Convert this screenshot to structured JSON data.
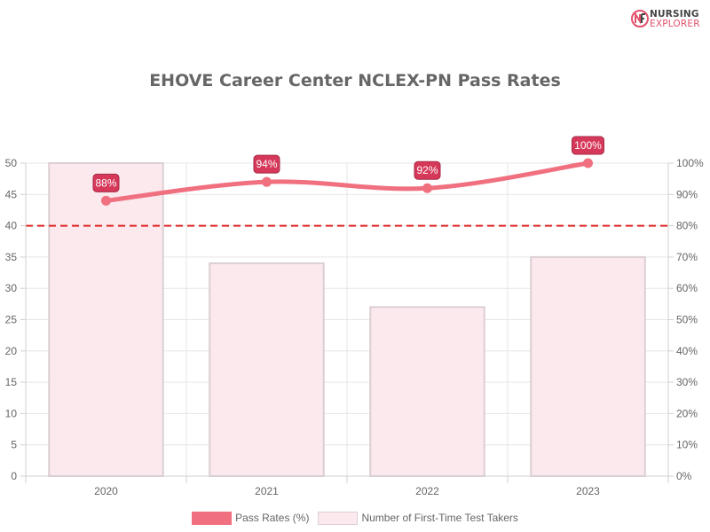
{
  "logo": {
    "line1": "NURSING",
    "line2": "EXPLORER",
    "icon": "nursing-explorer-logo-icon"
  },
  "chart_data": {
    "type": "bar",
    "title": "EHOVE Career Center NCLEX-PN Pass Rates",
    "categories": [
      "2020",
      "2021",
      "2022",
      "2023"
    ],
    "series": [
      {
        "name": "Pass Rates (%)",
        "type": "line",
        "axis": "right",
        "values": [
          88,
          94,
          92,
          100
        ],
        "labels": [
          "88%",
          "94%",
          "92%",
          "100%"
        ],
        "color": "#f0707f"
      },
      {
        "name": "Number of First-Time Test Takers",
        "type": "bar",
        "axis": "left",
        "values": [
          50,
          34,
          27,
          35
        ],
        "color": "#fbe9ee",
        "border": "#dccfd3"
      }
    ],
    "y_left": {
      "min": 0,
      "max": 50,
      "step": 5
    },
    "y_right": {
      "min": 0,
      "max": 100,
      "step": 10,
      "suffix": "%"
    },
    "reference_line": {
      "value": 80,
      "axis": "right",
      "color": "#e02424",
      "style": "dashed"
    },
    "label_color": "#d6385a",
    "grid": true,
    "legend_position": "bottom"
  }
}
